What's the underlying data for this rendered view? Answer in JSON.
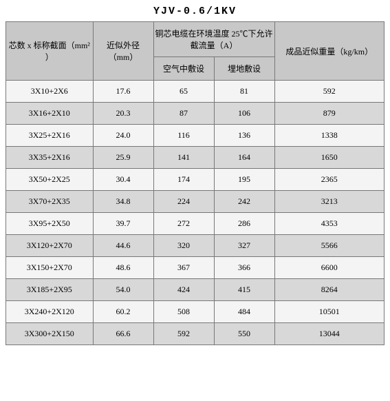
{
  "title": "YJV-0.6/1KV",
  "table": {
    "type": "table",
    "background_color": "#ffffff",
    "border_color": "#777777",
    "header_bg": "#c8c8c8",
    "row_odd_bg": "#f4f4f4",
    "row_even_bg": "#d8d8d8",
    "title_fontsize": 15,
    "cell_fontsize": 12,
    "col_widths_pct": [
      23,
      16,
      16,
      16,
      29
    ],
    "columns": {
      "spec": "芯数 x 标称截面（mm² ）",
      "od": "近似外径（mm）",
      "amp_group": "铜芯电缆在环境温度 25℃下允许截流量（A）",
      "amp_air": "空气中敷设",
      "amp_buried": "埋地敷设",
      "weight": "成品近似重量（kg/km）"
    },
    "rows": [
      {
        "spec": "3X10+2X6",
        "od": "17.6",
        "amp_air": "65",
        "amp_buried": "81",
        "weight": "592"
      },
      {
        "spec": "3X16+2X10",
        "od": "20.3",
        "amp_air": "87",
        "amp_buried": "106",
        "weight": "879"
      },
      {
        "spec": "3X25+2X16",
        "od": "24.0",
        "amp_air": "116",
        "amp_buried": "136",
        "weight": "1338"
      },
      {
        "spec": "3X35+2X16",
        "od": "25.9",
        "amp_air": "141",
        "amp_buried": "164",
        "weight": "1650"
      },
      {
        "spec": "3X50+2X25",
        "od": "30.4",
        "amp_air": "174",
        "amp_buried": "195",
        "weight": "2365"
      },
      {
        "spec": "3X70+2X35",
        "od": "34.8",
        "amp_air": "224",
        "amp_buried": "242",
        "weight": "3213"
      },
      {
        "spec": "3X95+2X50",
        "od": "39.7",
        "amp_air": "272",
        "amp_buried": "286",
        "weight": "4353"
      },
      {
        "spec": "3X120+2X70",
        "od": "44.6",
        "amp_air": "320",
        "amp_buried": "327",
        "weight": "5566"
      },
      {
        "spec": "3X150+2X70",
        "od": "48.6",
        "amp_air": "367",
        "amp_buried": "366",
        "weight": "6600"
      },
      {
        "spec": "3X185+2X95",
        "od": "54.0",
        "amp_air": "424",
        "amp_buried": "415",
        "weight": "8264"
      },
      {
        "spec": "3X240+2X120",
        "od": "60.2",
        "amp_air": "508",
        "amp_buried": "484",
        "weight": "10501"
      },
      {
        "spec": "3X300+2X150",
        "od": "66.6",
        "amp_air": "592",
        "amp_buried": "550",
        "weight": "13044"
      }
    ]
  }
}
